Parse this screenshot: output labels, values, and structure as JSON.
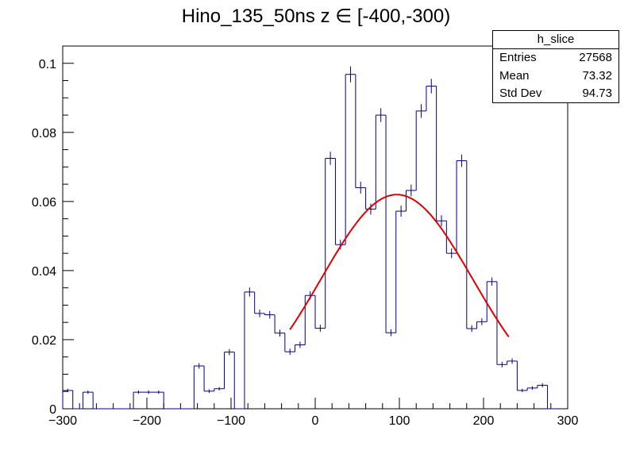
{
  "chart_data": {
    "type": "bar",
    "title": "Hino_135_50ns z  ∈ [-400,-300)",
    "xlabel": "",
    "ylabel": "",
    "xlim": [
      -300,
      300
    ],
    "ylim": [
      0,
      0.105
    ],
    "x_ticks": [
      -300,
      -200,
      -100,
      0,
      100,
      200,
      300
    ],
    "y_ticks": [
      0,
      0.02,
      0.04,
      0.06,
      0.08,
      0.1
    ],
    "x_tick_labels": [
      "−300",
      "−200",
      "−100",
      "0",
      "100",
      "200",
      "300"
    ],
    "y_tick_labels": [
      "0",
      "0.02",
      "0.04",
      "0.06",
      "0.08",
      "0.1"
    ],
    "bin_width": 12,
    "bin_start": -300,
    "values": [
      0.0053,
      0.0,
      0.0048,
      0.0,
      0.0,
      0.0,
      0.0,
      0.0048,
      0.0048,
      0.0048,
      0.0,
      0.0,
      0.0,
      0.0124,
      0.0051,
      0.0058,
      0.0164,
      0.0,
      0.0338,
      0.0276,
      0.0272,
      0.0219,
      0.0165,
      0.0185,
      0.0328,
      0.0233,
      0.0725,
      0.0475,
      0.0968,
      0.064,
      0.0578,
      0.085,
      0.022,
      0.0572,
      0.0632,
      0.0862,
      0.0934,
      0.0544,
      0.045,
      0.0718,
      0.0232,
      0.0252,
      0.0368,
      0.0128,
      0.0138,
      0.0053,
      0.006,
      0.0068,
      0.0
    ],
    "errors": [
      0.0005,
      0.0,
      0.0005,
      0.0,
      0.0,
      0.0,
      0.0,
      0.0005,
      0.0005,
      0.0005,
      0.0,
      0.0,
      0.0,
      0.0008,
      0.0005,
      0.0005,
      0.0009,
      0.0,
      0.0013,
      0.0011,
      0.0011,
      0.001,
      0.0009,
      0.0009,
      0.0012,
      0.001,
      0.0019,
      0.0014,
      0.0023,
      0.0017,
      0.0016,
      0.002,
      0.001,
      0.0016,
      0.0017,
      0.002,
      0.0021,
      0.0016,
      0.0014,
      0.0018,
      0.001,
      0.001,
      0.0012,
      0.0008,
      0.0008,
      0.0005,
      0.0005,
      0.0006,
      0.0
    ],
    "fit": {
      "type": "gaussian",
      "amplitude": 0.062,
      "mean": 97,
      "sigma": 90,
      "x_range": [
        -30,
        230
      ]
    },
    "colors": {
      "histogram": "#000080",
      "fit": "#e00000",
      "axis": "#000000"
    },
    "legend_placement": "top-right",
    "grid": false
  },
  "stats_box": {
    "name": "h_slice",
    "entries_label": "Entries",
    "entries_value": "27568",
    "mean_label": "Mean",
    "mean_value": "73.32",
    "stddev_label": "Std Dev",
    "stddev_value": "94.73"
  }
}
